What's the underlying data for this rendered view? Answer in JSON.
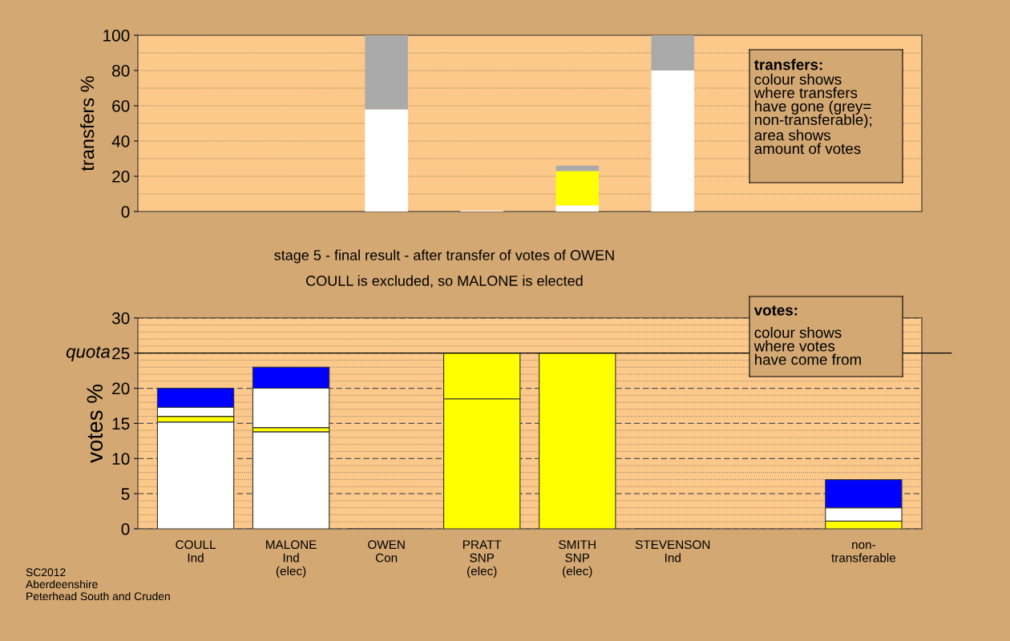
{
  "chart_data": [
    {
      "type": "bar",
      "stacked": true,
      "ylabel": "transfers %",
      "categories": [
        null,
        null,
        null,
        null,
        null,
        null,
        null,
        null
      ],
      "ylim": [
        0,
        100
      ],
      "yticks": [
        0,
        20,
        40,
        60,
        80,
        100
      ],
      "grid": "y",
      "tick_labels": "y",
      "legend": false,
      "annotations": [
        "transfers:",
        "colour shows\nwhere transfers\nhave gone (grey=\nnon-transferable);",
        "area shows\namount of votes"
      ],
      "series": [
        {
          "color": "#ffffff",
          "values": [
            0,
            0,
            58,
            0.5,
            3.5,
            80,
            null,
            0
          ]
        },
        {
          "color": "#ffff00",
          "values": [
            0,
            0,
            0,
            0,
            19.5,
            0,
            null,
            0
          ]
        },
        {
          "color": "#aaaaaa",
          "values": [
            0,
            0,
            42,
            0,
            3,
            20,
            null,
            0
          ]
        }
      ]
    },
    {
      "type": "bar",
      "stacked": true,
      "title": "stage 5 - final result - after transfer of votes of OWEN",
      "subtitle": "COULL is excluded, so MALONE is elected",
      "ylabel": "votes %",
      "categories": [
        "COULL\nInd",
        "MALONE\nInd\n(elec)",
        "OWEN\nCon",
        "PRATT\nSNP\n(elec)",
        "SMITH\nSNP\n(elec)",
        "STEVENSON\nInd",
        null,
        "non-\ntransferable"
      ],
      "ylim": [
        0,
        30
      ],
      "yticks": [
        0,
        5,
        10,
        15,
        20,
        25,
        30
      ],
      "grid": "y",
      "legend": false,
      "ref_lines": [
        {
          "axis": "y",
          "value": 25,
          "label": "quota",
          "color": "#000000",
          "line_style": "solid"
        }
      ],
      "annotations": [
        "votes:",
        "colour shows\nwhere votes\nhave come from",
        "SC2012\nAberdeenshire\nPeterhead South and Cruden"
      ],
      "series": [
        {
          "color": "#ffffff",
          "values": [
            15.2,
            13.8,
            0,
            0,
            0,
            0,
            null,
            0
          ]
        },
        {
          "color": "#ffff00",
          "values": [
            0.8,
            0.6,
            0,
            18.5,
            25,
            0,
            null,
            1.1
          ]
        },
        {
          "color": "#ffff00",
          "values": [
            0,
            0,
            0,
            6.5,
            0,
            0,
            null,
            0
          ]
        },
        {
          "color": "#ffffff",
          "values": [
            1.3,
            5.6,
            0,
            0,
            0,
            0,
            null,
            1.9
          ]
        },
        {
          "color": "#0000ff",
          "values": [
            2.7,
            3.0,
            0,
            0,
            0,
            0,
            null,
            4.0
          ]
        }
      ]
    }
  ]
}
